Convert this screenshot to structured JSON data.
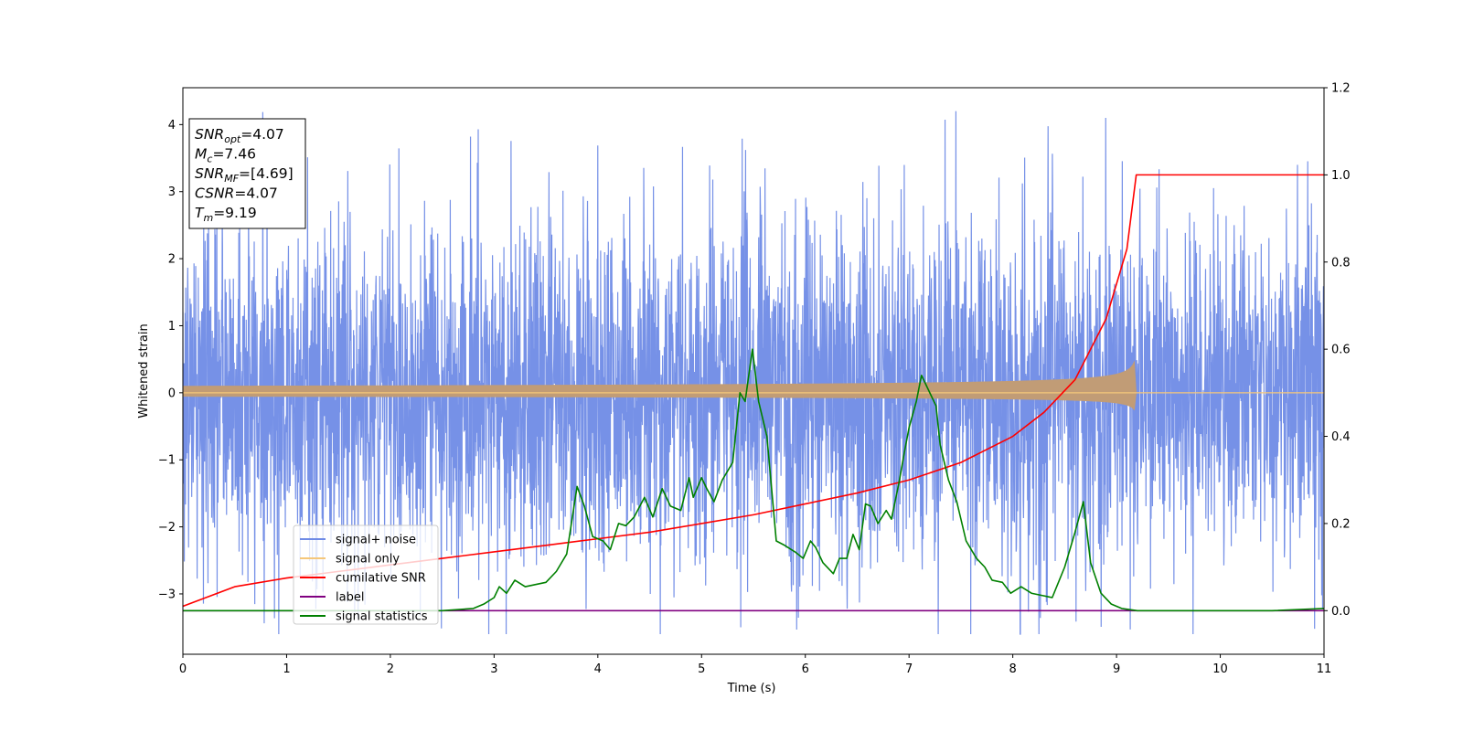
{
  "chart_data": {
    "type": "line",
    "xlabel": "Time (s)",
    "ylabel": "Whitened strain",
    "xlim": [
      0,
      11
    ],
    "ylim": [
      -3.9,
      4.55
    ],
    "y2lim": [
      -0.1,
      1.2
    ],
    "x_ticks": [
      0,
      1,
      2,
      3,
      4,
      5,
      6,
      7,
      8,
      9,
      10,
      11
    ],
    "y_ticks": [
      -3,
      -2,
      -1,
      0,
      1,
      2,
      3,
      4
    ],
    "y_tick_labels": [
      "−3",
      "−2",
      "−1",
      "0",
      "1",
      "2",
      "3",
      "4"
    ],
    "y2_ticks": [
      0.0,
      0.2,
      0.4,
      0.6,
      0.8,
      1.0,
      1.2
    ],
    "y2_tick_labels": [
      "0.0",
      "0.2",
      "0.4",
      "0.6",
      "0.8",
      "1.0",
      "1.2"
    ],
    "grid": false,
    "legend_position": "lower-left",
    "annotation": {
      "lines": [
        {
          "base": "SNR",
          "sub": "opt",
          "rest": "=4.07"
        },
        {
          "base": "M",
          "sub": "c",
          "rest": "=7.46"
        },
        {
          "base": "SNR",
          "sub": "MF",
          "rest": "=[4.69]"
        },
        {
          "base": "CSNR",
          "sub": "",
          "rest": "=4.07"
        },
        {
          "base": "T",
          "sub": "m",
          "rest": "=9.19"
        }
      ]
    },
    "series": [
      {
        "name": "signal+ noise",
        "color": "#6f8be6",
        "axis": "left",
        "noise_amplitude": 1.3,
        "noise_min": -3.6,
        "noise_max": 4.2
      },
      {
        "name": "signal only",
        "color": "#f5c77a",
        "fill_color": "#c19c76",
        "axis": "left",
        "merger_time": 9.19,
        "peak_amplitude": 0.6
      },
      {
        "name": "cumilative SNR",
        "color": "#ff0000",
        "axis": "right",
        "x": [
          0,
          0.5,
          1,
          1.5,
          2,
          2.5,
          3,
          3.5,
          4,
          4.5,
          5,
          5.5,
          6,
          6.5,
          7,
          7.5,
          8,
          8.3,
          8.6,
          8.9,
          9.1,
          9.19,
          9.2,
          10,
          11
        ],
        "y": [
          0.01,
          0.055,
          0.075,
          0.09,
          0.105,
          0.12,
          0.135,
          0.15,
          0.165,
          0.18,
          0.2,
          0.22,
          0.245,
          0.27,
          0.3,
          0.34,
          0.4,
          0.455,
          0.53,
          0.67,
          0.83,
          1.0,
          1.0,
          1.0,
          1.0
        ]
      },
      {
        "name": "label",
        "color": "#800080",
        "axis": "right",
        "x": [
          0,
          11
        ],
        "y": [
          0,
          0
        ]
      },
      {
        "name": "signal statistics",
        "color": "#008000",
        "axis": "right",
        "x": [
          0,
          0.5,
          1,
          1.5,
          2,
          2.5,
          2.8,
          2.9,
          3.0,
          3.05,
          3.12,
          3.2,
          3.3,
          3.4,
          3.5,
          3.6,
          3.7,
          3.8,
          3.87,
          3.95,
          4.05,
          4.12,
          4.2,
          4.27,
          4.35,
          4.45,
          4.53,
          4.62,
          4.7,
          4.8,
          4.88,
          4.92,
          5.0,
          5.05,
          5.12,
          5.2,
          5.3,
          5.37,
          5.42,
          5.49,
          5.55,
          5.63,
          5.72,
          5.8,
          5.9,
          5.98,
          6.05,
          6.1,
          6.17,
          6.27,
          6.33,
          6.4,
          6.46,
          6.52,
          6.58,
          6.63,
          6.7,
          6.78,
          6.83,
          6.9,
          6.96,
          7.0,
          7.07,
          7.12,
          7.2,
          7.26,
          7.3,
          7.38,
          7.46,
          7.55,
          7.65,
          7.73,
          7.8,
          7.9,
          7.98,
          8.08,
          8.18,
          8.28,
          8.38,
          8.5,
          8.6,
          8.68,
          8.75,
          8.85,
          8.95,
          9.05,
          9.2,
          10,
          10.5,
          11
        ],
        "y": [
          0.0,
          0.0,
          0.0,
          0.0,
          0.0,
          0.0,
          0.005,
          0.015,
          0.03,
          0.055,
          0.04,
          0.07,
          0.055,
          0.06,
          0.065,
          0.09,
          0.13,
          0.285,
          0.24,
          0.17,
          0.16,
          0.14,
          0.2,
          0.195,
          0.215,
          0.26,
          0.215,
          0.28,
          0.24,
          0.23,
          0.305,
          0.26,
          0.305,
          0.28,
          0.25,
          0.3,
          0.34,
          0.5,
          0.48,
          0.6,
          0.48,
          0.4,
          0.16,
          0.15,
          0.135,
          0.12,
          0.16,
          0.145,
          0.11,
          0.085,
          0.12,
          0.12,
          0.175,
          0.14,
          0.245,
          0.24,
          0.2,
          0.23,
          0.21,
          0.29,
          0.37,
          0.42,
          0.48,
          0.54,
          0.5,
          0.47,
          0.38,
          0.3,
          0.25,
          0.16,
          0.12,
          0.1,
          0.07,
          0.065,
          0.04,
          0.055,
          0.04,
          0.035,
          0.03,
          0.1,
          0.18,
          0.25,
          0.11,
          0.04,
          0.015,
          0.005,
          0.0,
          0.0,
          0.0,
          0.005
        ]
      }
    ]
  }
}
